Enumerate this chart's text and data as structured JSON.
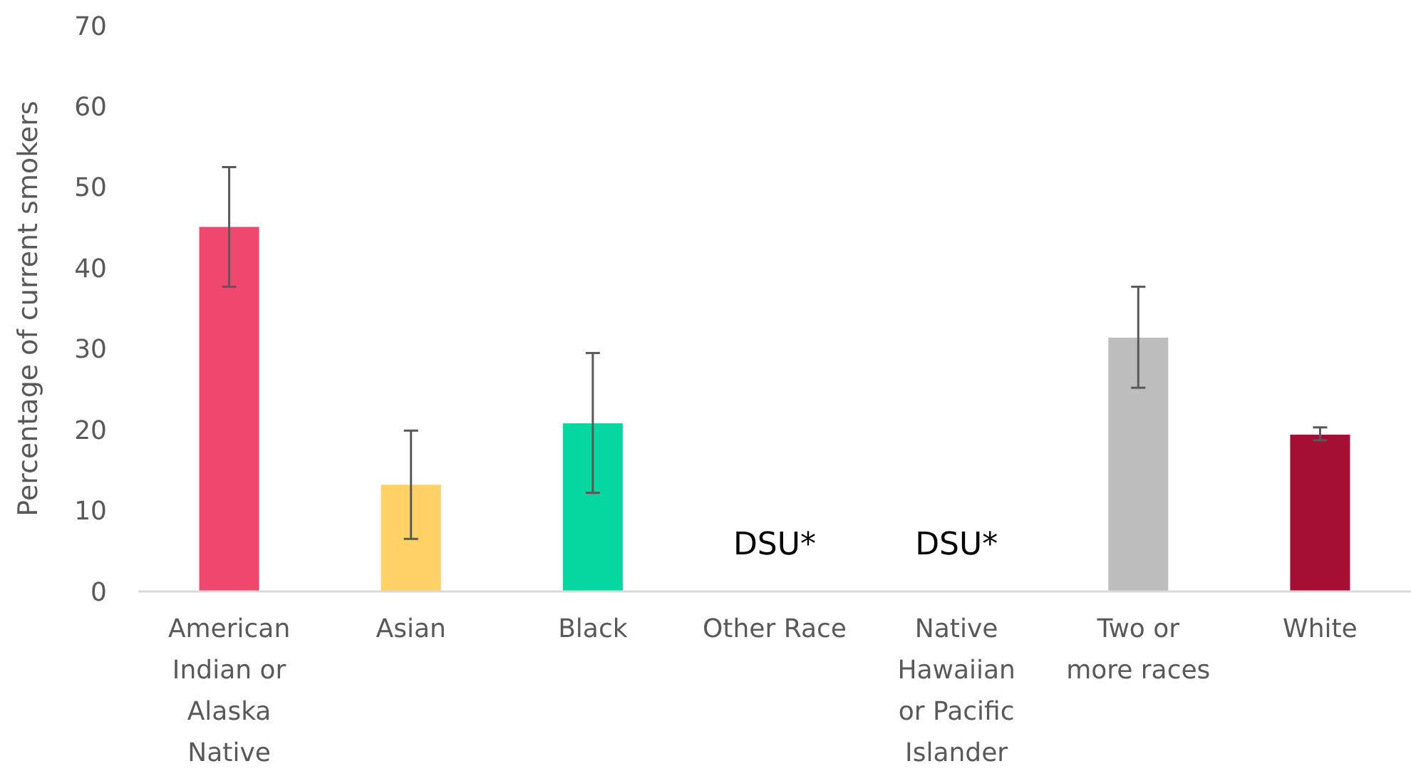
{
  "chart_data": {
    "type": "bar",
    "ylabel": "Percentage of current smokers",
    "categories": [
      "American Indian or Alaska Native",
      "Asian",
      "Black",
      "Other Race",
      "Native Hawaiian or Pacific Islander",
      "Two or more races",
      "White"
    ],
    "values": [
      45.1,
      13.2,
      20.8,
      null,
      null,
      31.4,
      19.4
    ],
    "colors": [
      "#f0476f",
      "#ffd166",
      "#06d6a0",
      null,
      null,
      "#bdbdbd",
      "#a50f34"
    ],
    "errors": [
      [
        37.7,
        52.5
      ],
      [
        6.5,
        19.9
      ],
      [
        12.2,
        29.5
      ],
      null,
      null,
      [
        25.2,
        37.7
      ],
      [
        18.7,
        20.3
      ]
    ],
    "value_labels": [
      null,
      null,
      null,
      "DSU*",
      "DSU*",
      null,
      null
    ],
    "ylim": [
      0,
      70
    ],
    "yticks": [
      0,
      10,
      20,
      30,
      40,
      50,
      60,
      70
    ],
    "grid": false
  }
}
